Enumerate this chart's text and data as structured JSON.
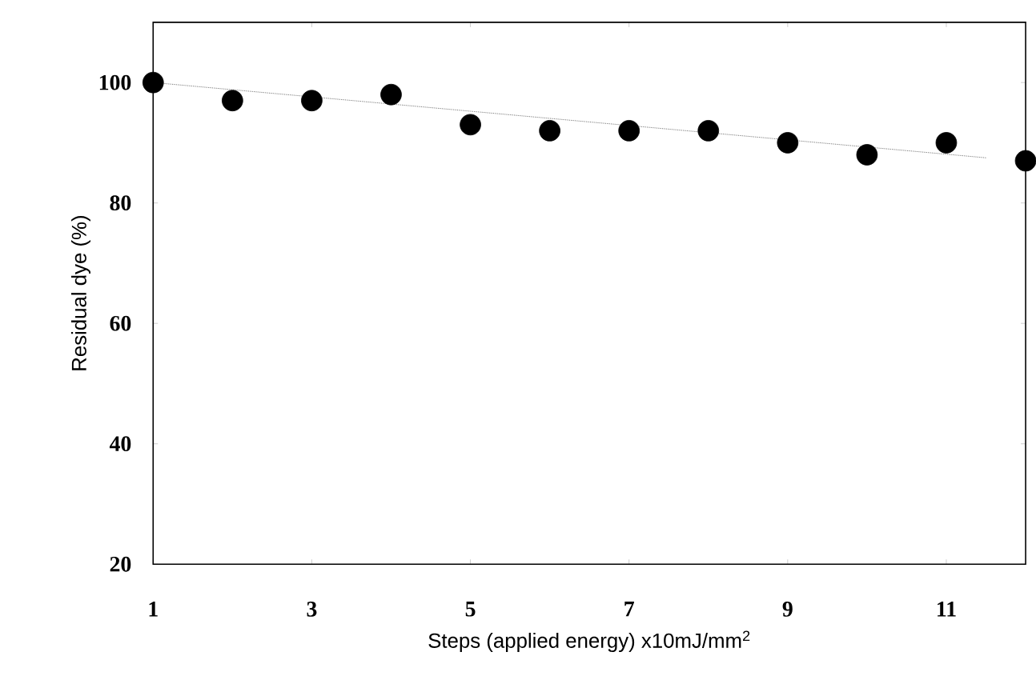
{
  "chart_data": {
    "type": "scatter",
    "xlabel": "Steps (applied energy) x10mJ/mm$^{2}$",
    "ylabel": "Residual dye (%)",
    "xlim": [
      1,
      12
    ],
    "xticks": [
      1,
      3,
      5,
      7,
      9,
      11
    ],
    "ylim": [
      20,
      110
    ],
    "yticks": [
      20,
      40,
      60,
      80,
      100
    ],
    "series": [
      {
        "color": "#000000",
        "x": [
          1,
          2,
          3,
          4,
          5,
          6,
          7,
          8,
          9,
          10,
          11,
          12
        ],
        "values": [
          100,
          97,
          97,
          98,
          93,
          92,
          92,
          92,
          90,
          88,
          90,
          87
        ]
      },
      {
        "type": "line",
        "color": "#555555",
        "line_style": "dotted",
        "x": [
          1,
          11.5
        ],
        "values": [
          100,
          87.5
        ]
      }
    ]
  }
}
